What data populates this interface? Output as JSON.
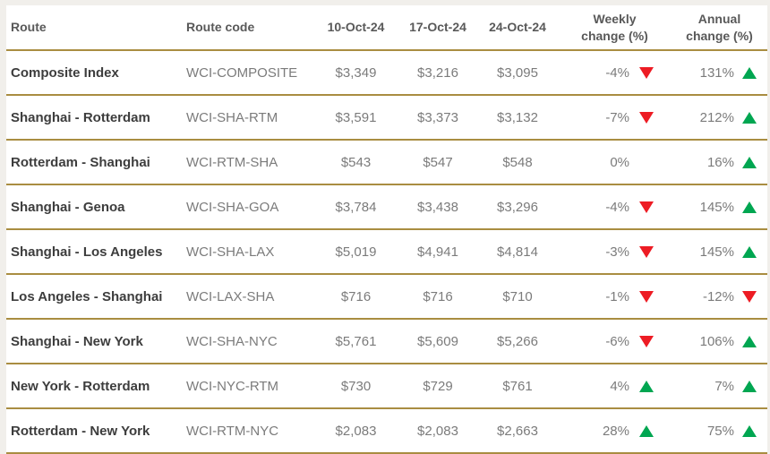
{
  "table": {
    "columns": [
      {
        "label": "Route"
      },
      {
        "label": "Route code"
      },
      {
        "label": "10-Oct-24"
      },
      {
        "label": "17-Oct-24"
      },
      {
        "label": "24-Oct-24"
      },
      {
        "label": "Weekly change (%)"
      },
      {
        "label": "Annual change (%)"
      }
    ],
    "rows": [
      {
        "route": "Composite Index",
        "code": "WCI-COMPOSITE",
        "oct10": "$3,349",
        "oct17": "$3,216",
        "oct24": "$3,095",
        "weekly": "-4%",
        "weekly_dir": "down",
        "annual": "131%",
        "annual_dir": "up"
      },
      {
        "route": "Shanghai - Rotterdam",
        "code": "WCI-SHA-RTM",
        "oct10": "$3,591",
        "oct17": "$3,373",
        "oct24": "$3,132",
        "weekly": "-7%",
        "weekly_dir": "down",
        "annual": "212%",
        "annual_dir": "up"
      },
      {
        "route": "Rotterdam - Shanghai",
        "code": "WCI-RTM-SHA",
        "oct10": "$543",
        "oct17": "$547",
        "oct24": "$548",
        "weekly": "0%",
        "weekly_dir": "none",
        "annual": "16%",
        "annual_dir": "up"
      },
      {
        "route": "Shanghai - Genoa",
        "code": "WCI-SHA-GOA",
        "oct10": "$3,784",
        "oct17": "$3,438",
        "oct24": "$3,296",
        "weekly": "-4%",
        "weekly_dir": "down",
        "annual": "145%",
        "annual_dir": "up"
      },
      {
        "route": "Shanghai - Los Angeles",
        "code": "WCI-SHA-LAX",
        "oct10": "$5,019",
        "oct17": "$4,941",
        "oct24": "$4,814",
        "weekly": "-3%",
        "weekly_dir": "down",
        "annual": "145%",
        "annual_dir": "up"
      },
      {
        "route": "Los Angeles - Shanghai",
        "code": "WCI-LAX-SHA",
        "oct10": "$716",
        "oct17": "$716",
        "oct24": "$710",
        "weekly": "-1%",
        "weekly_dir": "down",
        "annual": "-12%",
        "annual_dir": "down"
      },
      {
        "route": "Shanghai - New York",
        "code": "WCI-SHA-NYC",
        "oct10": "$5,761",
        "oct17": "$5,609",
        "oct24": "$5,266",
        "weekly": "-6%",
        "weekly_dir": "down",
        "annual": "106%",
        "annual_dir": "up"
      },
      {
        "route": "New York - Rotterdam",
        "code": "WCI-NYC-RTM",
        "oct10": "$730",
        "oct17": "$729",
        "oct24": "$761",
        "weekly": "4%",
        "weekly_dir": "up",
        "annual": "7%",
        "annual_dir": "up"
      },
      {
        "route": "Rotterdam - New York",
        "code": "WCI-RTM-NYC",
        "oct10": "$2,083",
        "oct17": "$2,083",
        "oct24": "$2,663",
        "weekly": "28%",
        "weekly_dir": "up",
        "annual": "75%",
        "annual_dir": "up"
      }
    ]
  },
  "colors": {
    "border_gold": "#a98d41",
    "up_green": "#00a651",
    "down_red": "#ed1c24"
  }
}
